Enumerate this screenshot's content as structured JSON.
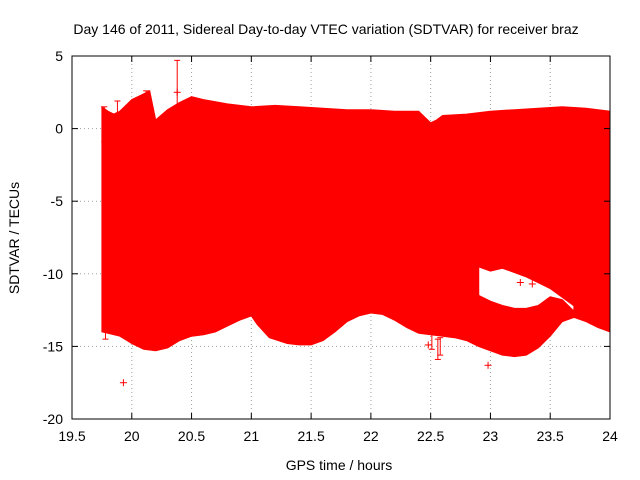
{
  "chart_data": {
    "type": "scatter",
    "title": "Day 146 of 2011, Sidereal Day-to-day VTEC variation (SDTVAR) for receiver braz",
    "xlabel": "GPS time / hours",
    "ylabel": "SDTVAR / TECUs",
    "xlim": [
      19.5,
      24
    ],
    "ylim": [
      -20,
      5
    ],
    "xticks": [
      19.5,
      20,
      20.5,
      21,
      21.5,
      22,
      22.5,
      23,
      23.5,
      24
    ],
    "yticks": [
      -20,
      -15,
      -10,
      -5,
      0,
      5
    ],
    "xtick_labels": [
      "19.5",
      "20",
      "20.5",
      "21",
      "21.5",
      "22",
      "22.5",
      "23",
      "23.5",
      "24"
    ],
    "ytick_labels": [
      "-20",
      "-15",
      "-10",
      "-5",
      "0",
      "5"
    ],
    "grid": true,
    "series_color": "#ff0000",
    "envelope_upper": {
      "x": [
        19.75,
        19.8,
        19.85,
        19.9,
        19.95,
        20.0,
        20.05,
        20.1,
        20.15,
        20.2,
        20.3,
        20.4,
        20.5,
        20.6,
        20.8,
        21.0,
        21.2,
        21.4,
        21.6,
        21.8,
        22.0,
        22.2,
        22.4,
        22.5,
        22.55,
        22.6,
        22.8,
        23.0,
        23.2,
        23.4,
        23.6,
        23.8,
        24.0
      ],
      "y": [
        1.5,
        1.2,
        1.0,
        1.2,
        1.6,
        2.0,
        2.2,
        2.4,
        2.6,
        0.6,
        1.3,
        1.8,
        2.2,
        2.0,
        1.7,
        1.5,
        1.6,
        1.5,
        1.4,
        1.3,
        1.3,
        1.2,
        1.2,
        0.4,
        0.6,
        0.9,
        1.0,
        1.2,
        1.3,
        1.4,
        1.5,
        1.4,
        1.2
      ]
    },
    "envelope_lower": {
      "x": [
        19.75,
        19.8,
        19.9,
        20.0,
        20.1,
        20.2,
        20.3,
        20.4,
        20.5,
        20.6,
        20.7,
        20.8,
        20.9,
        21.0,
        21.05,
        21.15,
        21.3,
        21.4,
        21.5,
        21.6,
        21.7,
        21.8,
        21.9,
        22.0,
        22.1,
        22.2,
        22.3,
        22.4,
        22.5,
        22.6,
        22.7,
        22.8,
        22.9,
        23.0,
        23.1,
        23.2,
        23.3,
        23.4,
        23.5,
        23.6,
        23.7,
        23.8,
        23.9,
        24.0
      ],
      "y": [
        -14.0,
        -14.1,
        -14.3,
        -14.8,
        -15.2,
        -15.3,
        -15.1,
        -14.6,
        -14.3,
        -14.2,
        -14.0,
        -13.6,
        -13.2,
        -12.9,
        -13.5,
        -14.4,
        -14.8,
        -14.9,
        -14.9,
        -14.6,
        -14.0,
        -13.3,
        -12.9,
        -12.7,
        -12.8,
        -13.2,
        -13.7,
        -14.1,
        -14.2,
        -14.3,
        -14.4,
        -14.6,
        -15.0,
        -15.3,
        -15.6,
        -15.7,
        -15.6,
        -15.1,
        -14.3,
        -13.3,
        -13.0,
        -13.3,
        -13.7,
        -14.0
      ]
    },
    "hole_regions": [
      {
        "x": [
          22.9,
          23.0,
          23.1,
          23.2,
          23.3,
          23.4,
          23.5,
          23.6,
          23.7
        ],
        "upper": [
          -9.5,
          -9.8,
          -9.6,
          -9.9,
          -10.2,
          -10.6,
          -11.0,
          -11.6,
          -12.2
        ],
        "lower": [
          -11.5,
          -11.9,
          -12.2,
          -12.4,
          -12.4,
          -12.2,
          -11.6,
          -11.8,
          -12.6
        ]
      }
    ],
    "error_bars": [
      {
        "x": 19.77,
        "y": 0.3,
        "yerr": 1.2
      },
      {
        "x": 19.88,
        "y": 0.5,
        "yerr": 1.4
      },
      {
        "x": 20.12,
        "y": 1.4,
        "yerr": 1.2
      },
      {
        "x": 20.38,
        "y": 2.2,
        "yerr": 2.5
      },
      {
        "x": 19.78,
        "y": -14.0,
        "yerr": 0.5
      },
      {
        "x": 22.51,
        "y": -14.4,
        "yerr": 0.8
      },
      {
        "x": 22.56,
        "y": -15.2,
        "yerr": 0.7
      },
      {
        "x": 22.58,
        "y": -15.0,
        "yerr": 0.6
      }
    ],
    "outlier_points": [
      {
        "x": 19.93,
        "y": -17.5
      },
      {
        "x": 22.48,
        "y": -14.9
      },
      {
        "x": 22.98,
        "y": -16.3
      },
      {
        "x": 23.25,
        "y": -10.6
      },
      {
        "x": 23.35,
        "y": -10.7
      },
      {
        "x": 20.38,
        "y": 2.5
      }
    ]
  }
}
